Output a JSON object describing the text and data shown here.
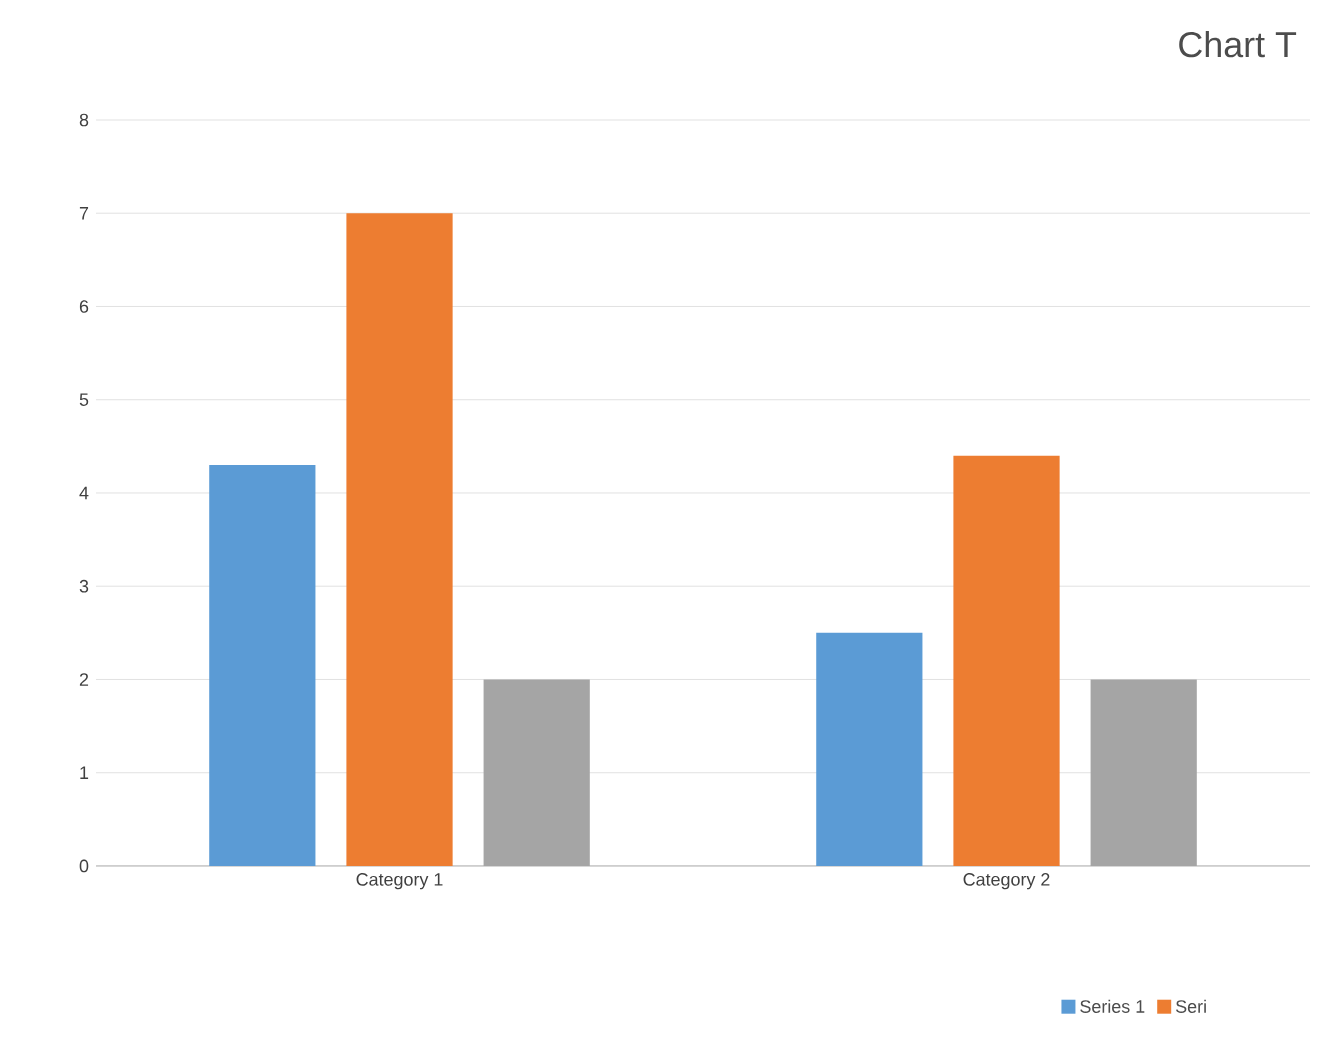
{
  "chart_data": {
    "type": "bar",
    "title": "Chart T",
    "categories": [
      "Category 1",
      "Category 2"
    ],
    "series": [
      {
        "name": "Series 1",
        "color": "#5b9bd5",
        "values": [
          4.3,
          2.5
        ]
      },
      {
        "name": "Seri",
        "color": "#ed7d31",
        "values": [
          7,
          4.4
        ]
      },
      {
        "color": "#a5a5a5",
        "values": [
          2,
          2
        ]
      }
    ],
    "ylim": [
      0,
      8
    ],
    "yticks": [
      0,
      1,
      2,
      3,
      4,
      5,
      6,
      7,
      8
    ],
    "grid": "y",
    "legend": "bottom right"
  }
}
